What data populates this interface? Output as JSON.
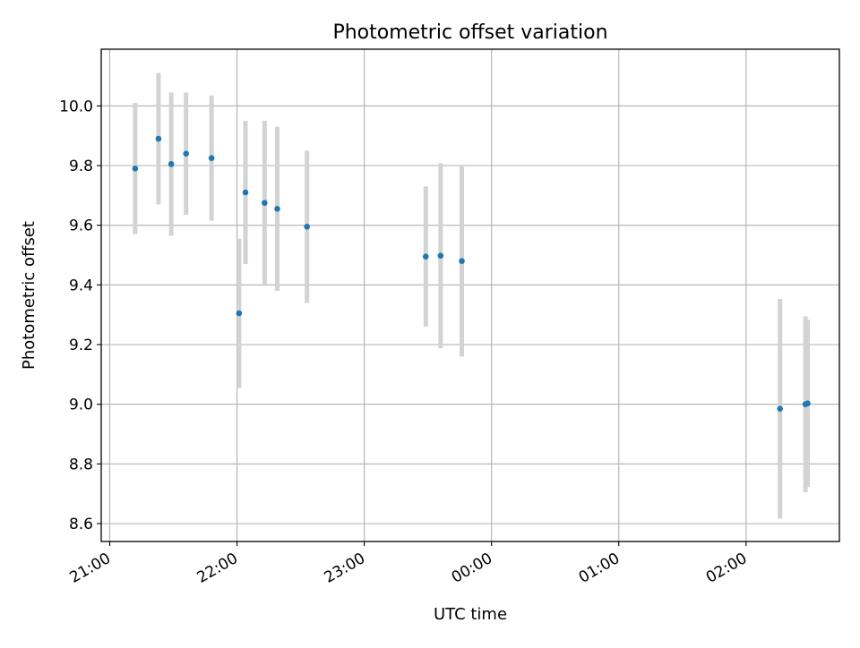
{
  "chart_data": {
    "type": "scatter",
    "title": "Photometric offset variation",
    "xlabel": "UTC time",
    "ylabel": "Photometric offset",
    "x_tick_labels": [
      "21:00",
      "22:00",
      "23:00",
      "00:00",
      "01:00",
      "02:00"
    ],
    "y_tick_labels": [
      "8.6",
      "8.8",
      "9.0",
      "9.2",
      "9.4",
      "9.6",
      "9.8",
      "10.0"
    ],
    "x_axis": "time of day",
    "xlim": [
      "20:56",
      "02:44"
    ],
    "ylim": [
      8.54,
      10.19
    ],
    "grid": true,
    "marker_color": "#1f77b4",
    "errorbar_color": "#d3d3d3",
    "points": [
      {
        "x": "21:12",
        "y": 9.79,
        "yerr": 0.22
      },
      {
        "x": "21:23",
        "y": 9.89,
        "yerr": 0.22
      },
      {
        "x": "21:29",
        "y": 9.805,
        "yerr": 0.24
      },
      {
        "x": "21:36",
        "y": 9.84,
        "yerr": 0.205
      },
      {
        "x": "21:48",
        "y": 9.825,
        "yerr": 0.21
      },
      {
        "x": "22:01",
        "y": 9.305,
        "yerr": 0.25
      },
      {
        "x": "22:04",
        "y": 9.71,
        "yerr": 0.24
      },
      {
        "x": "22:13",
        "y": 9.675,
        "yerr": 0.275
      },
      {
        "x": "22:19",
        "y": 9.655,
        "yerr": 0.275
      },
      {
        "x": "22:33",
        "y": 9.595,
        "yerr": 0.255
      },
      {
        "x": "23:29",
        "y": 9.495,
        "yerr": 0.235
      },
      {
        "x": "23:36",
        "y": 9.498,
        "yerr": 0.31
      },
      {
        "x": "23:46",
        "y": 9.48,
        "yerr": 0.32
      },
      {
        "x": "02:16",
        "y": 8.985,
        "yerr": 0.368
      },
      {
        "x": "02:28",
        "y": 9.0,
        "yerr": 0.295
      },
      {
        "x": "02:29",
        "y": 9.003,
        "yerr": 0.28
      }
    ]
  }
}
